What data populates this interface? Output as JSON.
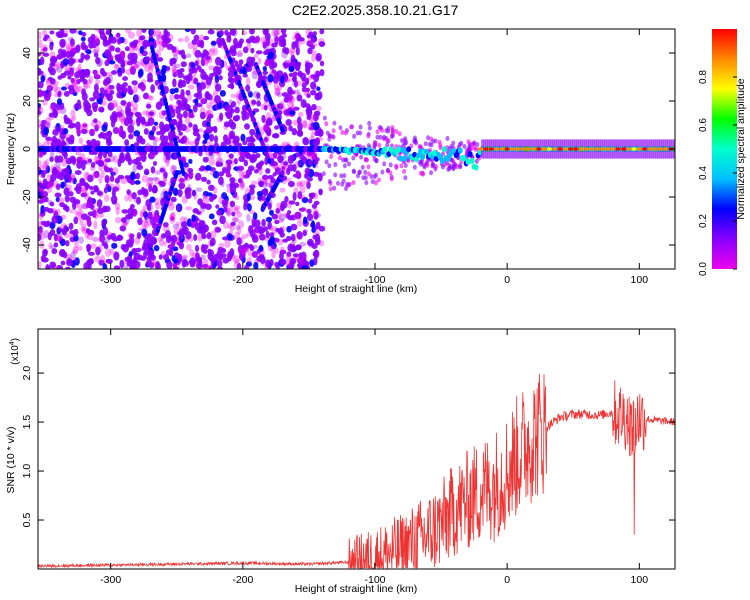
{
  "title": "C2E2.2025.358.10.21.G17",
  "chart_data": [
    {
      "type": "heatmap",
      "xlabel": "Height of straight line (km)",
      "ylabel": "Frequency (Hz)",
      "xlim": [
        -355,
        127
      ],
      "ylim": [
        -50,
        50
      ],
      "xticks": [
        -300,
        -200,
        -100,
        0,
        100
      ],
      "xtick_labels": [
        "-300",
        "-200",
        "-100",
        "0",
        "100"
      ],
      "yticks": [
        -40,
        -20,
        0,
        20,
        40
      ],
      "ytick_labels": [
        "-40",
        "-20",
        "0",
        "20",
        "40"
      ],
      "colorbar": {
        "label": "Normalized spectral amplitude",
        "range": [
          0,
          1
        ],
        "ticks": [
          0.0,
          0.2,
          0.4,
          0.6,
          0.8
        ],
        "tick_labels": [
          "0.0",
          "0.2",
          "0.4",
          "0.6",
          "0.8"
        ],
        "colors": [
          "#ee00ee",
          "#8800ff",
          "#0000ff",
          "#00bfff",
          "#00ffcc",
          "#00ff00",
          "#ffff00",
          "#ff8800",
          "#ff0000"
        ]
      },
      "grid": false
    },
    {
      "type": "line",
      "xlabel": "Height of straight line (km)",
      "ylabel": "SNR (10 * v/v)",
      "y_multiplier": "(x10",
      "y_multiplier_exp": "4",
      "y_multiplier_close": ")",
      "xlim": [
        -355,
        127
      ],
      "ylim": [
        0,
        2.45
      ],
      "xticks": [
        -300,
        -200,
        -100,
        0,
        100
      ],
      "xtick_labels": [
        "-300",
        "-200",
        "-100",
        "0",
        "100"
      ],
      "yticks": [
        0.5,
        1.0,
        1.5,
        2.0
      ],
      "ytick_labels": [
        "0.5",
        "1.0",
        "1.5",
        "2.0"
      ],
      "color": "#ee3333",
      "series": [
        {
          "x": [
            -355,
            -300,
            -250,
            -200,
            -150,
            -120,
            -100,
            -80,
            -60,
            -50,
            -40,
            -30,
            -20,
            -10,
            0,
            10,
            20,
            30,
            40,
            50,
            60,
            70,
            80,
            90,
            95,
            100,
            110,
            127
          ],
          "y": [
            0.03,
            0.04,
            0.05,
            0.06,
            0.05,
            0.07,
            0.12,
            0.2,
            0.35,
            0.45,
            0.6,
            0.7,
            0.8,
            0.85,
            1.0,
            1.2,
            1.35,
            1.45,
            1.55,
            1.58,
            1.58,
            1.57,
            1.6,
            1.55,
            1.45,
            1.55,
            1.52,
            1.5
          ]
        }
      ],
      "grid": false
    }
  ]
}
